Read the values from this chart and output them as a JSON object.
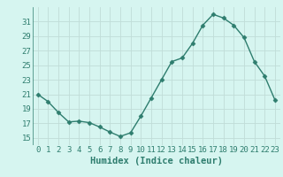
{
  "x": [
    0,
    1,
    2,
    3,
    4,
    5,
    6,
    7,
    8,
    9,
    10,
    11,
    12,
    13,
    14,
    15,
    16,
    17,
    18,
    19,
    20,
    21,
    22,
    23
  ],
  "y": [
    21,
    20,
    18.5,
    17.2,
    17.3,
    17.1,
    16.5,
    15.8,
    15.2,
    15.7,
    18,
    20.5,
    23,
    25.5,
    26,
    28,
    30.5,
    32,
    31.5,
    30.5,
    28.8,
    25.5,
    23.5,
    20.2
  ],
  "line_color": "#2e7d6e",
  "marker": "D",
  "marker_size": 2.5,
  "bg_color": "#d6f5f0",
  "grid_color": "#c0ddd8",
  "xlabel": "Humidex (Indice chaleur)",
  "xlim": [
    -0.5,
    23.5
  ],
  "ylim": [
    14,
    33
  ],
  "yticks": [
    15,
    17,
    19,
    21,
    23,
    25,
    27,
    29,
    31
  ],
  "xticks": [
    0,
    1,
    2,
    3,
    4,
    5,
    6,
    7,
    8,
    9,
    10,
    11,
    12,
    13,
    14,
    15,
    16,
    17,
    18,
    19,
    20,
    21,
    22,
    23
  ],
  "xlabel_fontsize": 7.5,
  "tick_fontsize": 6.5,
  "line_width": 1.0
}
